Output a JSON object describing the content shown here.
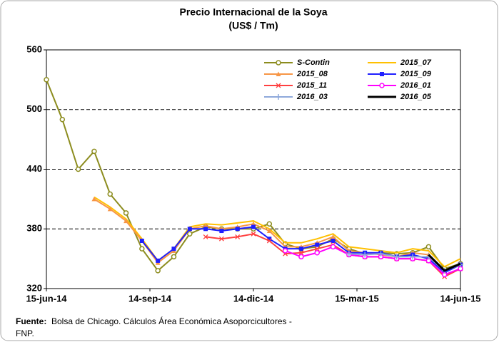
{
  "chart_data": {
    "type": "line",
    "title": "Precio Internacional de la Soya",
    "subtitle": "(US$ / Tm)",
    "x": [
      "2014-06-15",
      "2014-06-29",
      "2014-07-13",
      "2014-07-27",
      "2014-08-10",
      "2014-08-24",
      "2014-09-07",
      "2014-09-21",
      "2014-10-05",
      "2014-10-19",
      "2014-11-02",
      "2014-11-16",
      "2014-11-30",
      "2014-12-14",
      "2014-12-28",
      "2015-01-11",
      "2015-01-25",
      "2015-02-08",
      "2015-02-22",
      "2015-03-08",
      "2015-03-22",
      "2015-04-05",
      "2015-04-19",
      "2015-05-03",
      "2015-05-17",
      "2015-05-31",
      "2015-06-14"
    ],
    "xlim": [
      "2014-06-15",
      "2015-06-14"
    ],
    "xticks": [
      {
        "value": "2014-06-15",
        "label": "15-jun-14"
      },
      {
        "value": "2014-09-14",
        "label": "14-sep-14"
      },
      {
        "value": "2014-12-14",
        "label": "14-dic-14"
      },
      {
        "value": "2015-03-15",
        "label": "15-mar-15"
      },
      {
        "value": "2015-06-14",
        "label": "14-jun-15"
      }
    ],
    "ylim": [
      320,
      560
    ],
    "yticks": [
      320,
      380,
      440,
      500,
      560
    ],
    "grid": true,
    "legend": "upper right",
    "series": [
      {
        "name": "S-Contin",
        "color": "#8c8c1e",
        "marker": "circle",
        "values": [
          530,
          490,
          440,
          458,
          415,
          396,
          360,
          338,
          352,
          375,
          382,
          380,
          380,
          380,
          385,
          365,
          360,
          362,
          370,
          360,
          355,
          356,
          355,
          356,
          362,
          340,
          345
        ]
      },
      {
        "name": "2015_07",
        "color": "#ffc000",
        "marker": "none",
        "values": [
          null,
          null,
          null,
          412,
          402,
          390,
          370,
          348,
          360,
          382,
          385,
          384,
          386,
          388,
          380,
          366,
          366,
          370,
          375,
          362,
          360,
          358,
          356,
          360,
          358,
          342,
          350
        ]
      },
      {
        "name": "2015_08",
        "color": "#f79646",
        "marker": "triangle",
        "values": [
          null,
          null,
          null,
          410,
          400,
          388,
          368,
          346,
          358,
          380,
          383,
          380,
          382,
          385,
          378,
          362,
          362,
          366,
          372,
          358,
          356,
          354,
          352,
          356,
          354,
          338,
          345
        ]
      },
      {
        "name": "2015_09",
        "color": "#1f1fff",
        "marker": "square",
        "values": [
          null,
          null,
          null,
          null,
          null,
          null,
          368,
          348,
          360,
          380,
          380,
          378,
          380,
          382,
          370,
          360,
          360,
          364,
          368,
          356,
          356,
          356,
          352,
          354,
          350,
          336,
          344
        ]
      },
      {
        "name": "2015_11",
        "color": "#ff4040",
        "marker": "x",
        "values": [
          null,
          null,
          null,
          null,
          null,
          null,
          null,
          null,
          null,
          null,
          372,
          370,
          372,
          375,
          368,
          355,
          356,
          360,
          364,
          354,
          352,
          352,
          350,
          350,
          348,
          332,
          340
        ]
      },
      {
        "name": "2016_01",
        "color": "#ff00ff",
        "marker": "circle",
        "values": [
          null,
          null,
          null,
          null,
          null,
          null,
          null,
          null,
          null,
          null,
          null,
          null,
          null,
          null,
          null,
          358,
          352,
          356,
          362,
          354,
          352,
          352,
          350,
          350,
          348,
          334,
          340
        ]
      },
      {
        "name": "2016_03",
        "color": "#8ea9db",
        "marker": "plus",
        "values": [
          null,
          null,
          null,
          null,
          null,
          null,
          null,
          null,
          null,
          null,
          null,
          null,
          null,
          null,
          null,
          null,
          null,
          null,
          null,
          355,
          354,
          355,
          352,
          352,
          352,
          338,
          344
        ]
      },
      {
        "name": "2016_05",
        "color": "#000000",
        "marker": "none",
        "width": 3,
        "values": [
          null,
          null,
          null,
          null,
          null,
          null,
          null,
          null,
          null,
          null,
          null,
          null,
          null,
          null,
          null,
          null,
          null,
          null,
          null,
          null,
          null,
          null,
          null,
          null,
          354,
          338,
          345
        ]
      }
    ],
    "source_label": "Fuente:",
    "source_text": "Bolsa de Chicago. Cálculos Área Económica Asoporcicultores -",
    "source_text_2": "FNP."
  }
}
